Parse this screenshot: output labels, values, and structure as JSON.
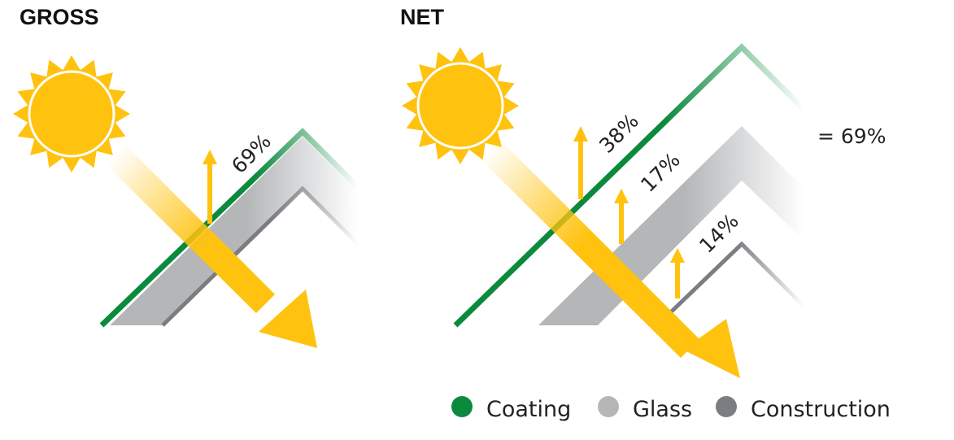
{
  "panels": [
    {
      "title": "GROSS",
      "labels": [
        "69%"
      ]
    },
    {
      "title": "NET",
      "labels": [
        "38%",
        "17%",
        "14%"
      ],
      "total": "= 69%"
    }
  ],
  "legend": [
    {
      "label": "Coating",
      "color": "#0b8a3e"
    },
    {
      "label": "Glass",
      "color": "#b4b6b8"
    },
    {
      "label": "Construction",
      "color": "#7b7d82"
    }
  ]
}
